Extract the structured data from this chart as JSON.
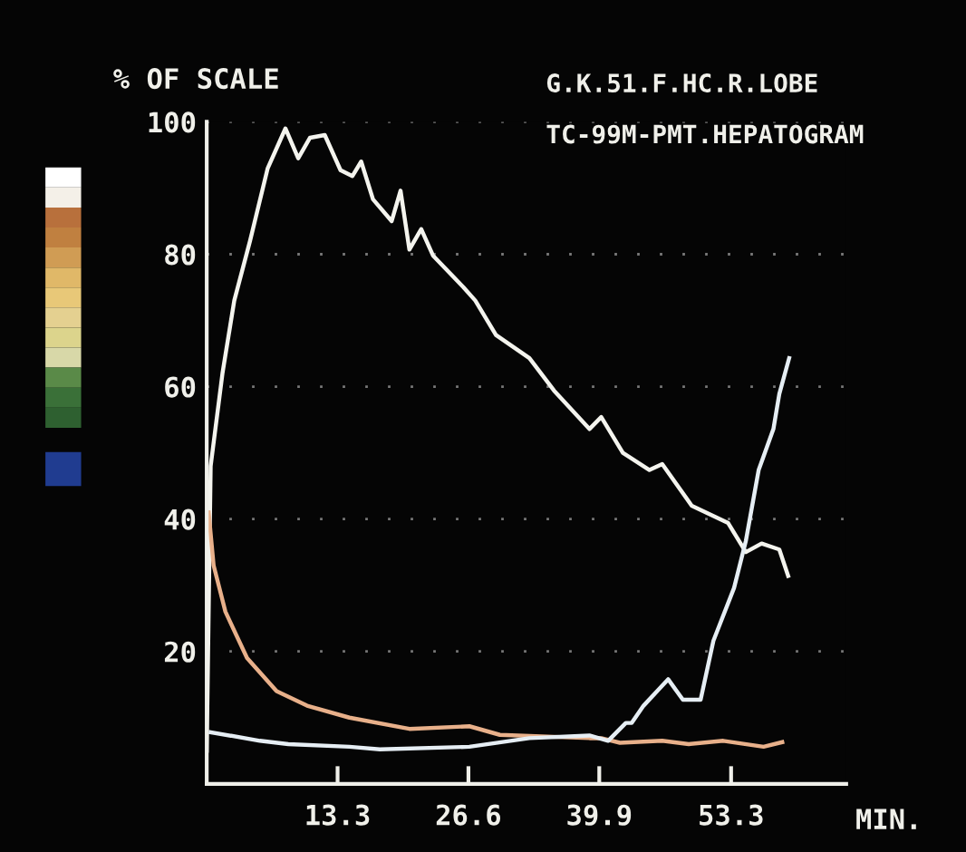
{
  "chart_data": {
    "type": "line",
    "title": "G.K.51.F.HC.R.LOBE",
    "subtitle": "TC-99M-PMT.HEPATOGRAM",
    "ylabel": "% OF SCALE",
    "xlabel": "MIN.",
    "xlim": [
      0,
      65
    ],
    "xticks": [
      13.3,
      26.6,
      39.9,
      53.3
    ],
    "ylim": [
      0,
      100
    ],
    "yticks": [
      20,
      40,
      60,
      80,
      100
    ],
    "grid": "y",
    "marker": "none",
    "line_style": "solid",
    "series": [
      {
        "color": "#f4f4ee",
        "x": [
          0,
          0.4,
          1.6,
          2.8,
          4.4,
          6.2,
          8.0,
          9.3,
          10.5,
          12.0,
          13.6,
          14.8,
          15.7,
          16.9,
          18.8,
          19.7,
          20.6,
          21.8,
          23.0,
          26.1,
          27.3,
          29.4,
          32.8,
          35.3,
          38.9,
          40.1,
          42.3,
          45.0,
          46.3,
          49.3,
          53.0,
          54.8,
          56.4,
          58.2,
          59.1
        ],
        "values": [
          5,
          48,
          62,
          73,
          82,
          93,
          99,
          94.5,
          97.6,
          98,
          92.7,
          91.8,
          94,
          88.3,
          85,
          89.6,
          80.7,
          83.8,
          79.8,
          75,
          73,
          67.8,
          64.3,
          59.4,
          53.6,
          55.4,
          50,
          47.4,
          48.3,
          42,
          39.4,
          35,
          36.3,
          35.4,
          31.4
        ]
      },
      {
        "color": "#e8b08a",
        "x": [
          0.2,
          0.7,
          1.9,
          4.1,
          7.1,
          10.2,
          14.5,
          20.6,
          26.7,
          29.8,
          38.9,
          40.1,
          42.0,
          46.3,
          49.0,
          52.5,
          56.6,
          58.5
        ],
        "values": [
          41,
          33,
          26,
          19,
          14,
          11.8,
          10,
          8.3,
          8.7,
          7.4,
          6.9,
          6.9,
          6.2,
          6.5,
          6,
          6.5,
          5.6,
          6.3
        ]
      },
      {
        "color": "#e6eef4",
        "x": [
          0.4,
          5.4,
          8.3,
          14.5,
          17.6,
          26.7,
          32.8,
          38.9,
          40.8,
          42.6,
          43.2,
          44.4,
          46.9,
          48.4,
          50.2,
          51.5,
          53.6,
          54.8,
          56.1,
          57.6,
          58.2,
          59.2
        ],
        "values": [
          7.8,
          6.5,
          6,
          5.6,
          5.2,
          5.6,
          6.9,
          7.3,
          6.5,
          9.2,
          9.2,
          11.8,
          15.8,
          12.7,
          12.7,
          21.6,
          29.6,
          36.7,
          47.4,
          53.6,
          58.9,
          64.3
        ]
      }
    ]
  }
}
